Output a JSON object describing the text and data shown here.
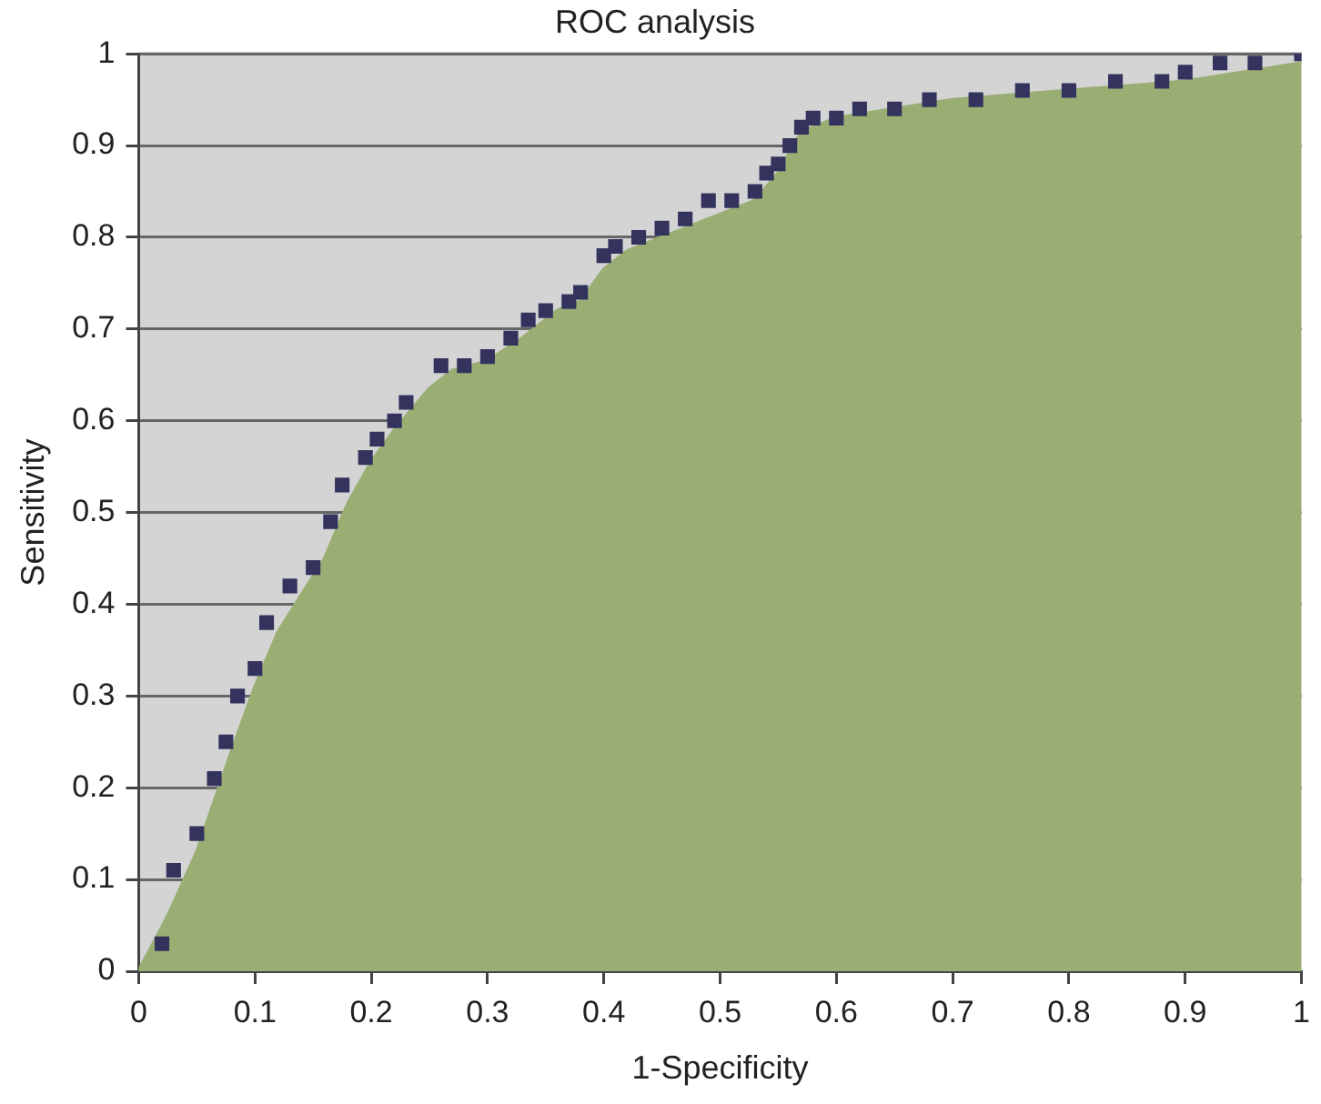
{
  "chart_data": {
    "type": "scatter",
    "title": "ROC analysis",
    "xlabel": "1-Specificity",
    "ylabel": "Sensitivity",
    "xlim": [
      0,
      1
    ],
    "xticks": [
      0,
      0.1,
      0.2,
      0.3,
      0.4,
      0.5,
      0.6,
      0.7,
      0.8,
      0.9,
      1
    ],
    "ylim": [
      0,
      1
    ],
    "yticks": [
      0,
      0.1,
      0.2,
      0.3,
      0.4,
      0.5,
      0.6,
      0.7,
      0.8,
      0.9,
      1
    ],
    "grid": "y",
    "legend": false,
    "series": [
      {
        "color": "#33335e",
        "marker": "square",
        "x": [
          0.02,
          0.03,
          0.05,
          0.065,
          0.075,
          0.085,
          0.1,
          0.11,
          0.13,
          0.15,
          0.165,
          0.175,
          0.195,
          0.205,
          0.22,
          0.23,
          0.26,
          0.28,
          0.3,
          0.32,
          0.335,
          0.35,
          0.37,
          0.38,
          0.4,
          0.41,
          0.43,
          0.45,
          0.47,
          0.49,
          0.51,
          0.53,
          0.54,
          0.55,
          0.56,
          0.57,
          0.58,
          0.6,
          0.62,
          0.65,
          0.68,
          0.72,
          0.76,
          0.8,
          0.84,
          0.88,
          0.9,
          0.93,
          0.96,
          1
        ],
        "values": [
          0.03,
          0.11,
          0.15,
          0.21,
          0.25,
          0.3,
          0.33,
          0.38,
          0.42,
          0.44,
          0.49,
          0.53,
          0.56,
          0.58,
          0.6,
          0.62,
          0.66,
          0.66,
          0.67,
          0.69,
          0.71,
          0.72,
          0.73,
          0.74,
          0.78,
          0.79,
          0.8,
          0.81,
          0.82,
          0.84,
          0.84,
          0.85,
          0.87,
          0.88,
          0.9,
          0.92,
          0.93,
          0.93,
          0.94,
          0.94,
          0.95,
          0.95,
          0.96,
          0.96,
          0.97,
          0.97,
          0.98,
          0.99,
          0.99,
          1
        ]
      },
      {
        "type": "area",
        "color": "#9aae74",
        "marker": "none",
        "x": [
          0,
          0.025,
          0.05,
          0.08,
          0.1,
          0.12,
          0.14,
          0.16,
          0.18,
          0.2,
          0.22,
          0.25,
          0.27,
          0.3,
          0.33,
          0.36,
          0.38,
          0.4,
          0.42,
          0.45,
          0.5,
          0.53,
          0.55,
          0.57,
          0.6,
          0.65,
          0.7,
          0.8,
          0.9,
          0.95,
          1
        ],
        "values": [
          0,
          0.06,
          0.13,
          0.24,
          0.31,
          0.37,
          0.41,
          0.45,
          0.51,
          0.555,
          0.59,
          0.635,
          0.655,
          0.665,
          0.69,
          0.72,
          0.73,
          0.765,
          0.785,
          0.8,
          0.825,
          0.84,
          0.87,
          0.915,
          0.93,
          0.94,
          0.95,
          0.96,
          0.97,
          0.98,
          0.99
        ]
      }
    ]
  }
}
